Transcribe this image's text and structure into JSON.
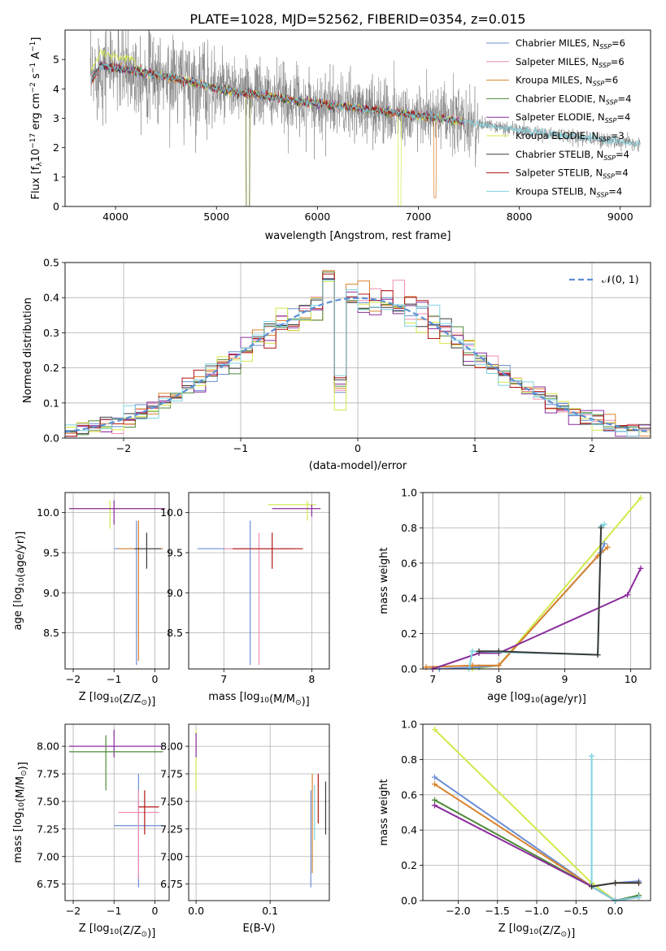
{
  "figure": {
    "title": "PLATE=1028, MJD=52562, FIBERID=0354, z=0.015"
  },
  "models": [
    {
      "name": "Chabrier MILES",
      "nssp": "6",
      "color": "#6b8fd6"
    },
    {
      "name": "Salpeter MILES",
      "nssp": "6",
      "color": "#f08fb0"
    },
    {
      "name": "Kroupa MILES",
      "nssp": "6",
      "color": "#d9822b"
    },
    {
      "name": "Chabrier ELODIE",
      "nssp": "4",
      "color": "#4f8a3a"
    },
    {
      "name": "Salpeter ELODIE",
      "nssp": "4",
      "color": "#8a2c9c"
    },
    {
      "name": "Kroupa ELODIE",
      "nssp": "3",
      "color": "#d4e84a"
    },
    {
      "name": "Chabrier STELIB",
      "nssp": "4",
      "color": "#3a3a3a"
    },
    {
      "name": "Salpeter STELIB",
      "nssp": "4",
      "color": "#b01515"
    },
    {
      "name": "Kroupa STELIB",
      "nssp": "4",
      "color": "#7fd3e0"
    }
  ],
  "legend_nssp_prefix": "N",
  "legend_nssp_sub": "SSP",
  "chart_data": [
    {
      "type": "line",
      "panel": "spectrum",
      "xlabel": "wavelength [Angstrom, rest frame]",
      "ylabel": "Flux [f_λ 10^-17 erg cm^-2 s^-1 A^-1]",
      "xlim": [
        3500,
        9300
      ],
      "ylim": [
        0,
        6
      ],
      "xticks": [
        4000,
        5000,
        6000,
        7000,
        8000,
        9000
      ],
      "yticks": [
        0,
        1,
        2,
        3,
        4,
        5
      ],
      "data_color": "#808080",
      "legend": "top-right",
      "continuum": {
        "x": [
          3750,
          3850,
          4000,
          4200,
          4500,
          4800,
          5000,
          5300,
          5600,
          6000,
          6500,
          7000,
          7400,
          7800,
          8200,
          8600,
          9000,
          9200
        ],
        "y": [
          4.2,
          4.8,
          4.7,
          4.6,
          4.4,
          4.2,
          4.0,
          3.85,
          3.7,
          3.5,
          3.3,
          3.1,
          2.9,
          2.7,
          2.5,
          2.35,
          2.2,
          2.1
        ]
      }
    },
    {
      "type": "line",
      "panel": "residuals",
      "xlabel": "(data-model)/error",
      "ylabel": "Normed distribution",
      "xlim": [
        -2.5,
        2.5
      ],
      "ylim": [
        0,
        0.5
      ],
      "xticks": [
        -2,
        -1,
        0,
        1,
        2
      ],
      "yticks": [
        0.0,
        0.1,
        0.2,
        0.3,
        0.4,
        0.5
      ],
      "legend": "top-right",
      "reference_label": "𝒩(0, 1)",
      "reference_color": "#5b8fd6"
    },
    {
      "type": "scatter",
      "panel": "age-Z",
      "xlabel": "Z [log10(Z/Z⊙)]",
      "ylabel": "age  [log10(age/yr)]",
      "xlim": [
        -2.2,
        0.35
      ],
      "ylim": [
        8.05,
        10.25
      ],
      "xticks": [
        -2,
        -1,
        0
      ],
      "yticks": [
        8.5,
        9.0,
        9.5,
        10.0
      ],
      "crosses": [
        {
          "x": -1.1,
          "y": 10.05,
          "dx": [
            -2.1,
            0.2
          ],
          "dy": [
            9.8,
            10.15
          ],
          "model": 5
        },
        {
          "x": -1.0,
          "y": 10.05,
          "dx": [
            -2.1,
            0.25
          ],
          "dy": [
            9.85,
            10.15
          ],
          "model": 4
        },
        {
          "x": -0.45,
          "y": 9.55,
          "dx": [
            -1.0,
            0.2
          ],
          "dy": [
            8.1,
            9.9
          ],
          "model": 0
        },
        {
          "x": -0.4,
          "y": 9.55,
          "dx": [
            -0.9,
            0.2
          ],
          "dy": [
            8.15,
            9.9
          ],
          "model": 2
        },
        {
          "x": -0.2,
          "y": 9.55,
          "dx": [
            -0.5,
            0.15
          ],
          "dy": [
            9.3,
            9.75
          ],
          "model": 6
        }
      ]
    },
    {
      "type": "scatter",
      "panel": "age-mass",
      "xlabel": "mass [log10(M/M⊙)]",
      "ylabel": "",
      "xlim": [
        6.6,
        8.2
      ],
      "ylim": [
        8.05,
        10.25
      ],
      "xticks": [
        7,
        8
      ],
      "yticks": [
        8.5,
        9.0,
        9.5,
        10.0
      ],
      "crosses": [
        {
          "x": 7.95,
          "y": 10.1,
          "dx": [
            7.5,
            8.05
          ],
          "dy": [
            9.9,
            10.15
          ],
          "model": 5
        },
        {
          "x": 8.0,
          "y": 10.05,
          "dx": [
            7.55,
            8.1
          ],
          "dy": [
            9.95,
            10.1
          ],
          "model": 4
        },
        {
          "x": 7.3,
          "y": 9.55,
          "dx": [
            6.7,
            7.8
          ],
          "dy": [
            8.1,
            9.9
          ],
          "model": 0
        },
        {
          "x": 7.4,
          "y": 9.55,
          "dx": [
            7.0,
            7.8
          ],
          "dy": [
            8.1,
            9.75
          ],
          "model": 1
        },
        {
          "x": 7.55,
          "y": 9.55,
          "dx": [
            7.1,
            7.9
          ],
          "dy": [
            9.3,
            9.75
          ],
          "model": 7
        }
      ]
    },
    {
      "type": "line",
      "panel": "weight-age",
      "xlabel": "age  [log10(age/yr)]",
      "ylabel": "mass weight",
      "xlim": [
        6.85,
        10.3
      ],
      "ylim": [
        0,
        1
      ],
      "xticks": [
        7,
        8,
        9,
        10
      ],
      "yticks": [
        0.0,
        0.2,
        0.4,
        0.6,
        0.8,
        1.0
      ],
      "series": [
        {
          "model": 5,
          "x": [
            7.6,
            8.0,
            10.15
          ],
          "y": [
            0.0,
            0.02,
            0.97
          ]
        },
        {
          "model": 0,
          "x": [
            7.1,
            7.7,
            8.0,
            9.55,
            9.6
          ],
          "y": [
            0.0,
            0.01,
            0.02,
            0.66,
            0.71
          ]
        },
        {
          "model": 2,
          "x": [
            6.9,
            7.6,
            8.0,
            9.5,
            9.65
          ],
          "y": [
            0.01,
            0.02,
            0.02,
            0.64,
            0.69
          ]
        },
        {
          "model": 4,
          "x": [
            7.0,
            7.7,
            8.0,
            9.95,
            10.15
          ],
          "y": [
            0.0,
            0.09,
            0.09,
            0.42,
            0.57
          ]
        },
        {
          "model": 8,
          "x": [
            7.55,
            7.6,
            9.5,
            9.55,
            9.6
          ],
          "y": [
            0.0,
            0.1,
            0.08,
            0.81,
            0.82
          ]
        },
        {
          "model": 6,
          "x": [
            7.7,
            8.0,
            9.5,
            9.55
          ],
          "y": [
            0.1,
            0.1,
            0.08,
            0.8
          ]
        }
      ]
    },
    {
      "type": "scatter",
      "panel": "mass-Z",
      "xlabel": "Z [log10(Z/Z⊙)]",
      "ylabel": "mass [log10(M/M⊙)]",
      "xlim": [
        -2.2,
        0.35
      ],
      "ylim": [
        6.6,
        8.2
      ],
      "xticks": [
        -2,
        -1,
        0
      ],
      "yticks": [
        6.75,
        7.0,
        7.25,
        7.5,
        7.75,
        8.0
      ],
      "crosses": [
        {
          "x": -1.0,
          "y": 8.0,
          "dx": [
            -2.1,
            0.2
          ],
          "dy": [
            7.9,
            8.15
          ],
          "model": 4
        },
        {
          "x": -1.2,
          "y": 7.95,
          "dx": [
            -2.1,
            0.2
          ],
          "dy": [
            7.6,
            8.1
          ],
          "model": 3
        },
        {
          "x": -0.4,
          "y": 7.28,
          "dx": [
            -1.0,
            0.2
          ],
          "dy": [
            6.72,
            7.75
          ],
          "model": 0
        },
        {
          "x": -0.4,
          "y": 7.4,
          "dx": [
            -0.9,
            0.1
          ],
          "dy": [
            6.8,
            7.6
          ],
          "model": 1
        },
        {
          "x": -0.25,
          "y": 7.45,
          "dx": [
            -0.4,
            0.1
          ],
          "dy": [
            7.2,
            7.6
          ],
          "model": 7
        }
      ]
    },
    {
      "type": "scatter",
      "panel": "mass-EBV",
      "xlabel": "E(B-V)",
      "ylabel": "",
      "xlim": [
        -0.01,
        0.18
      ],
      "ylim": [
        6.6,
        8.2
      ],
      "xticks": [
        0.0,
        0.1
      ],
      "yticks": [
        6.75,
        7.0,
        7.25,
        7.5,
        7.75,
        8.0
      ],
      "bars": [
        {
          "x": 0.0,
          "dy": [
            7.6,
            8.15
          ],
          "model": 5
        },
        {
          "x": 0.0,
          "dy": [
            7.9,
            8.12
          ],
          "model": 4
        },
        {
          "x": 0.155,
          "dy": [
            6.72,
            7.6
          ],
          "model": 0
        },
        {
          "x": 0.157,
          "dy": [
            6.85,
            7.75
          ],
          "model": 2
        },
        {
          "x": 0.16,
          "dy": [
            7.15,
            7.65
          ],
          "model": 8
        },
        {
          "x": 0.165,
          "dy": [
            7.3,
            7.75
          ],
          "model": 7
        },
        {
          "x": 0.175,
          "dy": [
            7.2,
            7.68
          ],
          "model": 6
        }
      ]
    },
    {
      "type": "line",
      "panel": "weight-Z",
      "xlabel": "Z [log10(Z/Z⊙)]",
      "ylabel": "mass weight",
      "xlim": [
        -2.45,
        0.45
      ],
      "ylim": [
        0,
        1
      ],
      "xticks": [
        -2.0,
        -1.5,
        -1.0,
        -0.5,
        0.0
      ],
      "yticks": [
        0.0,
        0.2,
        0.4,
        0.6,
        0.8,
        1.0
      ],
      "series": [
        {
          "model": 5,
          "x": [
            -2.3,
            -0.3,
            0.0,
            0.3
          ],
          "y": [
            0.97,
            0.1,
            0.0,
            0.02
          ]
        },
        {
          "model": 0,
          "x": [
            -2.3,
            -0.3,
            0.0,
            0.3
          ],
          "y": [
            0.7,
            0.08,
            0.1,
            0.11
          ]
        },
        {
          "model": 2,
          "x": [
            -2.3,
            -0.3,
            0.0,
            0.3
          ],
          "y": [
            0.66,
            0.08,
            0.1,
            0.1
          ]
        },
        {
          "model": 3,
          "x": [
            -2.3,
            -0.3,
            0.0,
            0.3
          ],
          "y": [
            0.57,
            0.08,
            0.0,
            0.03
          ]
        },
        {
          "model": 4,
          "x": [
            -2.3,
            -0.3,
            0.0,
            0.3
          ],
          "y": [
            0.54,
            0.08,
            0.0,
            0.02
          ]
        },
        {
          "model": 8,
          "x": [
            -0.3,
            -0.3,
            0.0,
            0.3
          ],
          "y": [
            0.82,
            0.08,
            0.0,
            0.02
          ]
        },
        {
          "model": 6,
          "x": [
            -0.3,
            0.0,
            0.3
          ],
          "y": [
            0.08,
            0.1,
            0.1
          ]
        }
      ]
    }
  ]
}
